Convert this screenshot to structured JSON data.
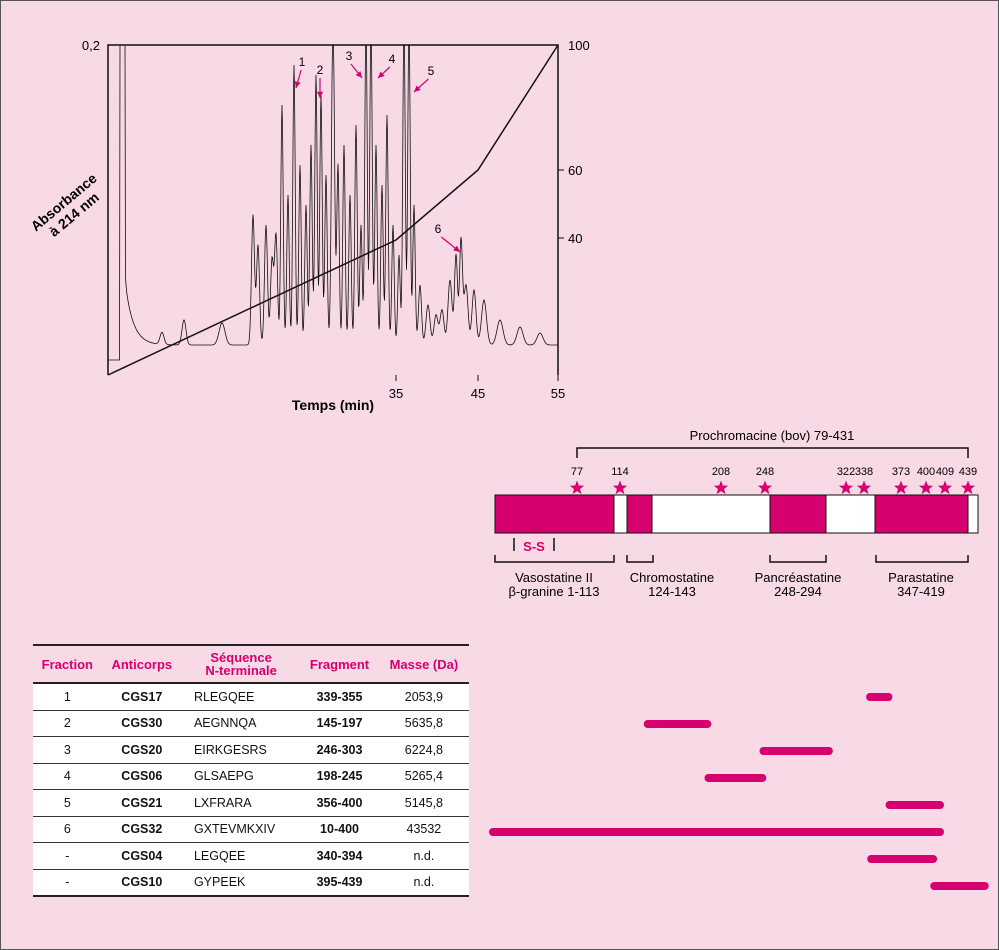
{
  "chromatogram": {
    "y_left_label": "Absorbance",
    "y_left_label2": "à 214 nm",
    "y_left_tick": "0,2",
    "x_label": "Temps (min)",
    "x_ticks": [
      "35",
      "45",
      "55"
    ],
    "y_right_ticks": [
      "100",
      "60",
      "40"
    ],
    "peak_labels": [
      "1",
      "2",
      "3",
      "4",
      "5",
      "6"
    ]
  },
  "protein_map": {
    "title": "Prochromacine (bov) 79-431",
    "sites": [
      "77",
      "114",
      "208",
      "248",
      "322",
      "338",
      "373",
      "400",
      "409",
      "439"
    ],
    "disulfide": "S-S",
    "domains": [
      {
        "name": "Vasostatine II",
        "range": "β-granine 1-113"
      },
      {
        "name": "Chromostatine",
        "range": "124-143"
      },
      {
        "name": "Pancréastatine",
        "range": "248-294"
      },
      {
        "name": "Parastatine",
        "range": "347-419"
      }
    ]
  },
  "table": {
    "headers": [
      "Fraction",
      "Anticorps",
      "Séquence",
      "N-terminale",
      "Fragment",
      "Masse (Da)"
    ],
    "rows": [
      {
        "fraction": "1",
        "antibody": "CGS17",
        "sequence": "RLEGQEE",
        "fragment": "339-355",
        "start": 339,
        "end": 355,
        "mass": "2053,9"
      },
      {
        "fraction": "2",
        "antibody": "CGS30",
        "sequence": "AEGNNQA",
        "fragment": "145-197",
        "start": 145,
        "end": 197,
        "mass": "5635,8"
      },
      {
        "fraction": "3",
        "antibody": "CGS20",
        "sequence": "EIRKGESRS",
        "fragment": "246-303",
        "start": 246,
        "end": 303,
        "mass": "6224,8"
      },
      {
        "fraction": "4",
        "antibody": "CGS06",
        "sequence": "GLSAEPG",
        "fragment": "198-245",
        "start": 198,
        "end": 245,
        "mass": "5265,4"
      },
      {
        "fraction": "5",
        "antibody": "CGS21",
        "sequence": "LXFRARA",
        "fragment": "356-400",
        "start": 356,
        "end": 400,
        "mass": "5145,8"
      },
      {
        "fraction": "6",
        "antibody": "CGS32",
        "sequence": "GXTEVMKXIV",
        "fragment": "10-400",
        "start": 10,
        "end": 400,
        "mass": "43532"
      },
      {
        "fraction": "-",
        "antibody": "CGS04",
        "sequence": "LEGQEE",
        "fragment": "340-394",
        "start": 340,
        "end": 394,
        "mass": "n.d."
      },
      {
        "fraction": "-",
        "antibody": "CGS10",
        "sequence": "GYPEEK",
        "fragment": "395-439",
        "start": 395,
        "end": 439,
        "mass": "n.d."
      }
    ]
  },
  "colors": {
    "accent": "#d6006e",
    "background": "#f8d9e6"
  }
}
